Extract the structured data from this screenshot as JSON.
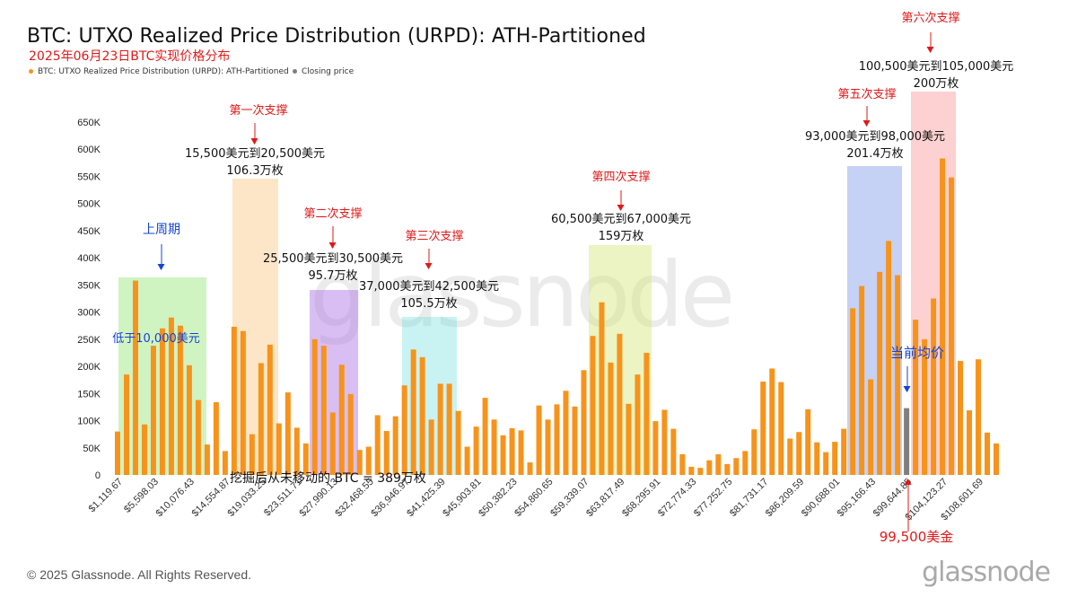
{
  "header": {
    "title": "BTC: UTXO Realized Price Distribution (URPD): ATH-Partitioned",
    "subtitle": "2025年06月23日BTC实现价格分布"
  },
  "legend": {
    "series": "BTC: UTXO Realized Price Distribution (URPD): ATH-Partitioned",
    "closing": "Closing price"
  },
  "footer": {
    "copyright": "© 2025 Glassnode. All Rights Reserved.",
    "watermark": "glassnode"
  },
  "colors": {
    "bar": "#f7931a",
    "closing": "#7f7f7f",
    "red": "#e01919",
    "blue": "#1344d6"
  },
  "annotations": {
    "prev_cycle": "上周期",
    "below_10k": "低于10,000美元",
    "unmoved": "挖掘后从未移动的 BTC = 389万枚",
    "support1": {
      "title": "第一次支撑",
      "range": "15,500美元到20,500美元",
      "amount": "106.3万枚"
    },
    "support2": {
      "title": "第二次支撑",
      "range": "25,500美元到30,500美元",
      "amount": "95.7万枚"
    },
    "support3": {
      "title": "第三次支撑",
      "range": "37,000美元到42,500美元",
      "amount": "105.5万枚"
    },
    "support4": {
      "title": "第四次支撑",
      "range": "60,500美元到67,000美元",
      "amount": "159万枚"
    },
    "support5": {
      "title": "第五次支撑",
      "range": "93,000美元到98,000美元",
      "amount": "201.4万枚"
    },
    "support6": {
      "title": "第六次支撑",
      "range": "100,500美元到105,000美元",
      "amount": "200万枚"
    },
    "current_avg": "当前均价",
    "price_label": "99,500美金"
  },
  "chart_data": {
    "type": "bar",
    "y_ticks": [
      "0",
      "50K",
      "100K",
      "150K",
      "200K",
      "250K",
      "300K",
      "350K",
      "400K",
      "450K",
      "500K",
      "550K",
      "600K",
      "650K"
    ],
    "ylim": [
      0,
      650000
    ],
    "x_tick_labels": [
      "$1,119.67",
      "$5,598.03",
      "$10,076.43",
      "$14,554.87",
      "$19,033.25",
      "$23,511.71",
      "$27,990.13",
      "$32,468.55",
      "$36,946.97",
      "$41,425.39",
      "$45,903.81",
      "$50,382.23",
      "$54,860.65",
      "$59,339.07",
      "$63,817.49",
      "$68,295.91",
      "$72,774.33",
      "$77,252.75",
      "$81,731.17",
      "$86,209.59",
      "$90,688.01",
      "$95,166.43",
      "$99,644.85",
      "$104,123.27",
      "$108,601.69"
    ],
    "values": [
      80000,
      185000,
      358000,
      93000,
      238000,
      270000,
      290000,
      275000,
      202000,
      138000,
      56000,
      134000,
      44000,
      273000,
      265000,
      75000,
      206000,
      240000,
      95000,
      152000,
      87000,
      58000,
      250000,
      238000,
      115000,
      203000,
      149000,
      46000,
      52000,
      110000,
      81000,
      108000,
      165000,
      231000,
      217000,
      102000,
      168000,
      168000,
      118000,
      52000,
      89000,
      142000,
      102000,
      73000,
      86000,
      82000,
      23000,
      128000,
      102000,
      130000,
      155000,
      126000,
      193000,
      256000,
      318000,
      207000,
      260000,
      131000,
      185000,
      225000,
      99000,
      120000,
      85000,
      38000,
      15000,
      13000,
      27000,
      38000,
      20000,
      31000,
      44000,
      84000,
      172000,
      196000,
      171000,
      67000,
      79000,
      121000,
      60000,
      42000,
      61000,
      85000,
      307000,
      348000,
      176000,
      374000,
      431000,
      368000,
      123000,
      286000,
      250000,
      325000,
      583000,
      548000,
      210000,
      119000,
      213000,
      78000,
      58000
    ],
    "closing_index": 88
  }
}
